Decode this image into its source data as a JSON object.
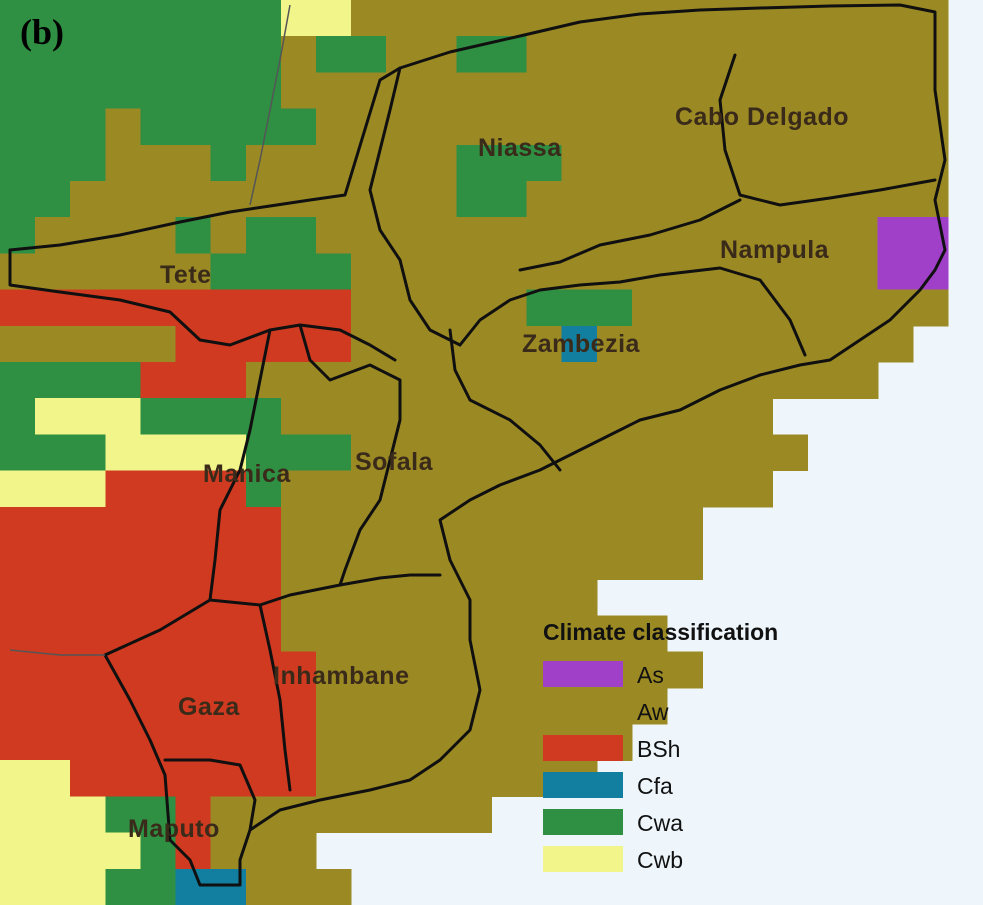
{
  "panel_label": "(b)",
  "colors": {
    "As": "#a040c8",
    "Aw": "#9b8a24",
    "BSh": "#cf3a21",
    "Cfa": "#127fa0",
    "Cwa": "#2f8f43",
    "Cwb": "#f2f58a",
    "ocean": "#eef6fb"
  },
  "provinces": [
    {
      "name": "Niassa"
    },
    {
      "name": "Cabo Delgado"
    },
    {
      "name": "Nampula"
    },
    {
      "name": "Tete"
    },
    {
      "name": "Zambezia"
    },
    {
      "name": "Manica"
    },
    {
      "name": "Sofala"
    },
    {
      "name": "Inhambane"
    },
    {
      "name": "Gaza"
    },
    {
      "name": "Maputo"
    }
  ],
  "legend": {
    "title": "Climate classification",
    "items": [
      {
        "code": "As",
        "label": "As"
      },
      {
        "code": "Aw",
        "label": "Aw"
      },
      {
        "code": "BSh",
        "label": "BSh"
      },
      {
        "code": "Cfa",
        "label": "Cfa"
      },
      {
        "code": "Cwa",
        "label": "Cwa"
      },
      {
        "code": "Cwb",
        "label": "Cwb"
      }
    ]
  }
}
